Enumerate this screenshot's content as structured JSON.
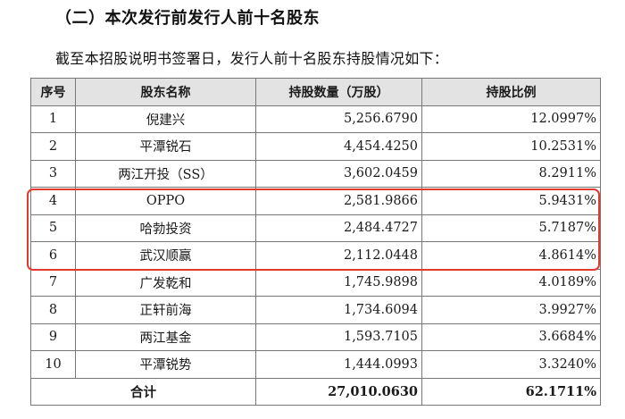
{
  "heading": "（二）本次发行前发行人前十名股东",
  "intro": "截至本招股说明书签署日，发行人前十名股东持股情况如下：",
  "table": {
    "headers": [
      "序号",
      "股东名称",
      "持股数量（万股）",
      "持股比例"
    ],
    "rows": [
      {
        "seq": "1",
        "name": "倪建兴",
        "shares": "5,256.6790",
        "ratio": "12.0997%"
      },
      {
        "seq": "2",
        "name": "平潭锐石",
        "shares": "4,454.4250",
        "ratio": "10.2531%"
      },
      {
        "seq": "3",
        "name": "两江开投（SS）",
        "shares": "3,602.0459",
        "ratio": "8.2911%"
      },
      {
        "seq": "4",
        "name": "OPPO",
        "shares": "2,581.9866",
        "ratio": "5.9431%"
      },
      {
        "seq": "5",
        "name": "哈勃投资",
        "shares": "2,484.4727",
        "ratio": "5.7187%"
      },
      {
        "seq": "6",
        "name": "武汉顺赢",
        "shares": "2,112.0448",
        "ratio": "4.8614%"
      },
      {
        "seq": "7",
        "name": "广发乾和",
        "shares": "1,745.9898",
        "ratio": "4.0189%"
      },
      {
        "seq": "8",
        "name": "正轩前海",
        "shares": "1,734.6094",
        "ratio": "3.9927%"
      },
      {
        "seq": "9",
        "name": "两江基金",
        "shares": "1,593.7105",
        "ratio": "3.6684%"
      },
      {
        "seq": "10",
        "name": "平潭锐势",
        "shares": "1,444.0993",
        "ratio": "3.3240%"
      }
    ],
    "total": {
      "label": "合计",
      "shares": "27,010.0630",
      "ratio": "62.1711%"
    }
  },
  "highlight": {
    "rows": [
      "4",
      "5",
      "6"
    ],
    "color": "#e23a2e"
  }
}
